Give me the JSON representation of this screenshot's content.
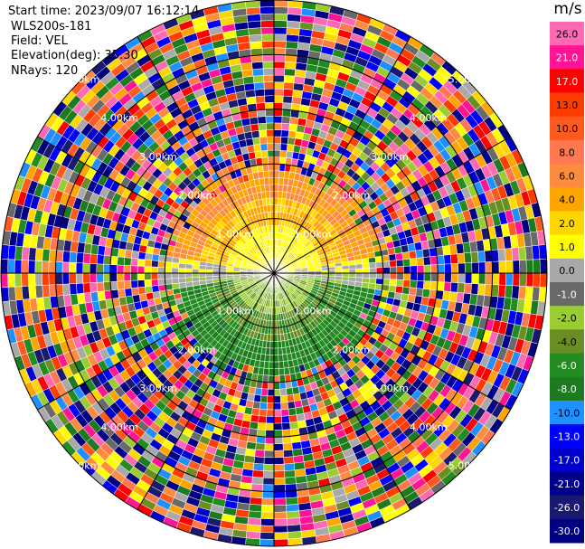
{
  "header": {
    "start_time": "Start time: 2023/09/07 16:12:14",
    "instrument": "WLS200s-181",
    "field": "Field: VEL",
    "elevation": "Elevation(deg): 35.30",
    "nrays": "NRays: 120"
  },
  "colorbar": {
    "unit": "m/s",
    "ticks": [
      "26.0",
      "21.0",
      "17.0",
      "13.0",
      "10.0",
      "8.0",
      "6.0",
      "4.0",
      "2.0",
      "1.0",
      "0.0",
      "-1.0",
      "-2.0",
      "-4.0",
      "-6.0",
      "-8.0",
      "-10.0",
      "-13.0",
      "-17.0",
      "-21.0",
      "-26.0",
      "-30.0"
    ],
    "colors": [
      "#ff69b4",
      "#ff1493",
      "#ff0000",
      "#ff3c00",
      "#ff5a1e",
      "#ff7850",
      "#ff8c3c",
      "#ffa500",
      "#ffd700",
      "#ffff00",
      "#a9a9a9",
      "#696969",
      "#9acd32",
      "#6b8e23",
      "#228b22",
      "#1e7a1e",
      "#1e90ff",
      "#0000ff",
      "#0000cd",
      "#00008b",
      "#191970",
      "#000080"
    ]
  },
  "chart_data": {
    "type": "ppi",
    "field": "VEL",
    "units": "m/s",
    "n_rays": 120,
    "range_rings": [
      {
        "label": "1.00km",
        "km": 1.0
      },
      {
        "label": "2.00km",
        "km": 2.0
      },
      {
        "label": "3.00km",
        "km": 3.0
      },
      {
        "label": "4.00km",
        "km": 4.0
      },
      {
        "label": "5.00km",
        "km": 5.0
      }
    ],
    "max_range_km": 5.0,
    "valid_data_range_km": 2.0,
    "velocity_pattern": {
      "north_half": "positive 0 to 6 m/s (yellow/orange)",
      "south_half": "negative 0 to -8 m/s (green)",
      "beyond_valid_range": "noise across full color scale"
    }
  }
}
